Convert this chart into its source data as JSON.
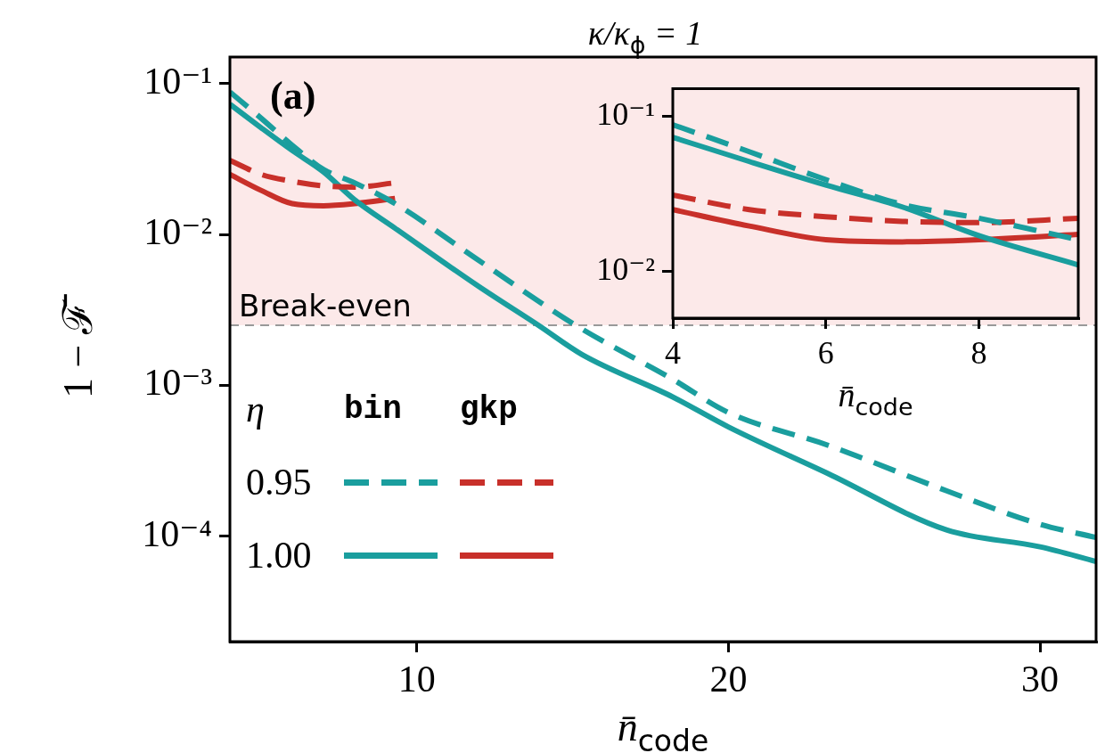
{
  "chart_data": [
    {
      "type": "line",
      "title": "κ/κ$_{ϕ}$ = 1",
      "xlabel": "n̄$_{code}$",
      "ylabel": "1 − ℱ̄",
      "legend_title": "η",
      "log": true,
      "grid": false,
      "annotations": [
        "(a)",
        "bin",
        "gkp",
        "0.95",
        "1.00"
      ],
      "xlim": [
        4,
        31.8
      ],
      "xticks": [
        10,
        20,
        30
      ],
      "ylim": [
        2e-05,
        0.15
      ],
      "yticks": [
        {
          "value": 0.1,
          "label": "10⁻¹"
        },
        {
          "value": 0.01,
          "label": "10⁻²"
        },
        {
          "value": 0.001,
          "label": "10⁻³"
        },
        {
          "value": 0.0001,
          "label": "10⁻⁴"
        }
      ],
      "bands": [
        {
          "axis": "y",
          "from": 0.0025,
          "to": 0.15,
          "color": "#fce9e9"
        }
      ],
      "ref_lines": [
        {
          "axis": "y",
          "value": 0.0025,
          "label": "Break-even",
          "color": "#999999",
          "line_style": "dashed"
        }
      ],
      "series": [
        {
          "color": "#1a9e9e",
          "line_style": "dashed",
          "x": [
            4,
            5,
            6,
            7,
            8,
            9.3,
            12,
            15.1,
            18.2,
            20,
            23.2,
            27,
            30,
            31.8
          ],
          "values": [
            0.088,
            0.059,
            0.039,
            0.027,
            0.022,
            0.016,
            0.0067,
            0.0025,
            0.0011,
            0.00066,
            0.0004,
            0.0002,
            0.00012,
            9.8e-05
          ]
        },
        {
          "color": "#c8302a",
          "line_style": "dashed",
          "x": [
            4,
            5,
            6,
            7,
            8,
            9.3
          ],
          "values": [
            0.031,
            0.025,
            0.0225,
            0.021,
            0.0206,
            0.022
          ]
        },
        {
          "color": "#1a9e9e",
          "line_style": "solid",
          "x": [
            4,
            5,
            6,
            7,
            8,
            9.3,
            12,
            13.9,
            15.3,
            18.2,
            20,
            23.2,
            27,
            30,
            31.8
          ],
          "values": [
            0.073,
            0.051,
            0.036,
            0.026,
            0.017,
            0.011,
            0.0045,
            0.0025,
            0.0016,
            0.00084,
            0.00053,
            0.00026,
            0.00011,
            8.5e-05,
            6.8e-05
          ]
        },
        {
          "color": "#c8302a",
          "line_style": "solid",
          "x": [
            4,
            5,
            6,
            7,
            8,
            9.3
          ],
          "values": [
            0.025,
            0.0196,
            0.016,
            0.0155,
            0.016,
            0.0173
          ]
        }
      ]
    },
    {
      "type": "line",
      "xlabel": "n̄$_{code}$",
      "log": true,
      "grid": false,
      "xlim": [
        4,
        9.3
      ],
      "xticks": [
        4,
        6,
        8
      ],
      "ylim": [
        0.005,
        0.15
      ],
      "yticks": [
        {
          "value": 0.1,
          "label": "10⁻¹"
        },
        {
          "value": 0.01,
          "label": "10⁻²"
        }
      ],
      "bands": [
        {
          "axis": "y",
          "from": 0.005,
          "to": 0.15,
          "color": "#fce9e9"
        }
      ],
      "series": [
        {
          "color": "#1a9e9e",
          "line_style": "dashed",
          "x": [
            4,
            5,
            6,
            7,
            8,
            9.3
          ],
          "values": [
            0.088,
            0.059,
            0.039,
            0.027,
            0.022,
            0.016
          ]
        },
        {
          "color": "#c8302a",
          "line_style": "dashed",
          "x": [
            4,
            5,
            6,
            7,
            8,
            9.3
          ],
          "values": [
            0.031,
            0.025,
            0.0225,
            0.021,
            0.0206,
            0.022
          ]
        },
        {
          "color": "#1a9e9e",
          "line_style": "solid",
          "x": [
            4,
            5,
            6,
            7,
            8,
            9.3
          ],
          "values": [
            0.073,
            0.051,
            0.036,
            0.026,
            0.017,
            0.011
          ]
        },
        {
          "color": "#c8302a",
          "line_style": "solid",
          "x": [
            4,
            5,
            6,
            7,
            8,
            9.3
          ],
          "values": [
            0.025,
            0.0196,
            0.016,
            0.0155,
            0.016,
            0.0173
          ]
        }
      ]
    }
  ]
}
